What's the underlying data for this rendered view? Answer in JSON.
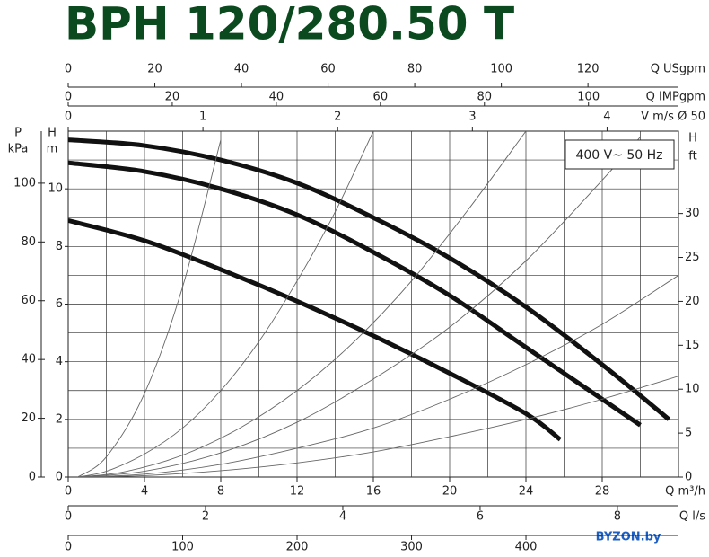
{
  "chart_data": {
    "type": "line",
    "title": "BPH 120/280.50 T",
    "annotation": "400 V~ 50 Hz",
    "watermark": "BYZON.by",
    "xlabel": "Q m³/h",
    "xlim": [
      0,
      32
    ],
    "xticks": [
      0,
      4,
      8,
      12,
      16,
      20,
      24,
      28
    ],
    "ylabel": [
      "H",
      "m"
    ],
    "ylim": [
      0,
      12
    ],
    "yticks": [
      0,
      2,
      4,
      6,
      8,
      10
    ],
    "y2label": [
      "H",
      "ft"
    ],
    "y2lim": [
      0,
      39.37
    ],
    "y2ticks": [
      0,
      5,
      10,
      15,
      20,
      25,
      30
    ],
    "y3label": [
      "P",
      "kPa"
    ],
    "y3lim": [
      0,
      117.7
    ],
    "y3ticks": [
      0,
      20,
      40,
      60,
      80,
      100
    ],
    "top_axes": [
      {
        "label": "Q USgpm",
        "lim": [
          0,
          140.9
        ],
        "ticks": [
          0,
          20,
          40,
          60,
          80,
          100,
          120
        ]
      },
      {
        "label": "Q IMPgpm",
        "lim": [
          0,
          117.3
        ],
        "ticks": [
          0,
          20,
          40,
          60,
          80,
          100
        ]
      },
      {
        "label": "V m/s Ø 50",
        "lim": [
          0,
          4.53
        ],
        "ticks": [
          0,
          1,
          2,
          3,
          4
        ]
      }
    ],
    "bottom_axes": [
      {
        "label": "Q l/s",
        "lim": [
          0,
          8.89
        ],
        "ticks": [
          0,
          2,
          4,
          6,
          8
        ]
      },
      {
        "lim": [
          0,
          533.3
        ],
        "ticks": [
          0,
          100,
          200,
          300,
          400
        ]
      }
    ],
    "grid": true,
    "x_grid": [
      2,
      4,
      6,
      8,
      10,
      12,
      14,
      16,
      18,
      20,
      22,
      24,
      26,
      28,
      30
    ],
    "y_grid": [
      1,
      2,
      3,
      4,
      5,
      6,
      7,
      8,
      9,
      10,
      11
    ],
    "series": [
      {
        "color": "#111111",
        "line_width": 5,
        "x": [
          0,
          4,
          8,
          12,
          16,
          20,
          24,
          28,
          31.5
        ],
        "values": [
          11.7,
          11.5,
          11.0,
          10.2,
          9.0,
          7.6,
          5.9,
          3.9,
          2.0
        ]
      },
      {
        "color": "#111111",
        "line_width": 5,
        "x": [
          0,
          4,
          8,
          12,
          16,
          20,
          24,
          28,
          30
        ],
        "values": [
          10.9,
          10.6,
          10.0,
          9.1,
          7.8,
          6.3,
          4.5,
          2.7,
          1.8
        ]
      },
      {
        "color": "#111111",
        "line_width": 5,
        "x": [
          0,
          4,
          8,
          12,
          16,
          20,
          24,
          25.8
        ],
        "values": [
          8.9,
          8.2,
          7.2,
          6.1,
          4.9,
          3.6,
          2.2,
          1.3
        ]
      },
      {
        "color": "#666666",
        "line_width": 0.9,
        "x": [
          0.5,
          2,
          4,
          6,
          8
        ],
        "values": [
          0,
          0.7,
          2.9,
          6.6,
          11.7
        ]
      },
      {
        "color": "#666666",
        "line_width": 0.9,
        "x": [
          0.5,
          2,
          4,
          6,
          8,
          10,
          12,
          14,
          16
        ],
        "values": [
          0,
          0.2,
          0.8,
          1.7,
          3.0,
          4.7,
          6.8,
          9.2,
          12.0
        ]
      },
      {
        "color": "#666666",
        "line_width": 0.9,
        "x": [
          0.5,
          3,
          6,
          9,
          12,
          15,
          18,
          21,
          24
        ],
        "values": [
          0,
          0.19,
          0.76,
          1.7,
          3.0,
          4.7,
          6.8,
          9.3,
          12.0
        ]
      },
      {
        "color": "#666666",
        "line_width": 0.9,
        "x": [
          0.5,
          4,
          8,
          12,
          16,
          20,
          24,
          28,
          30
        ],
        "values": [
          0,
          0.2,
          0.84,
          1.9,
          3.4,
          5.2,
          7.5,
          10.3,
          11.8
        ]
      },
      {
        "color": "#666666",
        "line_width": 0.9,
        "x": [
          0.5,
          4,
          8,
          12,
          16,
          20,
          24,
          28,
          32
        ],
        "values": [
          0,
          0.1,
          0.44,
          1.0,
          1.7,
          2.7,
          3.9,
          5.3,
          7.0
        ]
      },
      {
        "color": "#666666",
        "line_width": 0.9,
        "x": [
          0.5,
          4,
          8,
          12,
          16,
          20,
          24,
          28,
          32
        ],
        "values": [
          0,
          0.05,
          0.22,
          0.49,
          0.87,
          1.4,
          2.0,
          2.7,
          3.5
        ]
      }
    ]
  }
}
